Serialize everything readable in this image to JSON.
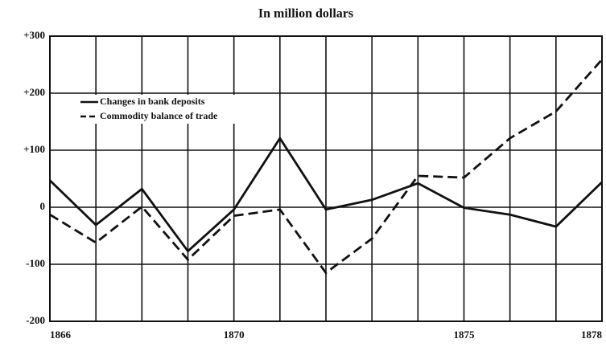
{
  "chart_data": {
    "type": "line",
    "title": "In million dollars",
    "x": [
      1866,
      1867,
      1868,
      1869,
      1870,
      1871,
      1872,
      1873,
      1874,
      1875,
      1876,
      1877,
      1878
    ],
    "xlim": [
      1866,
      1878
    ],
    "xticks": [
      1866,
      1870,
      1875,
      1878
    ],
    "ylim": [
      -200,
      300
    ],
    "yticks": [
      {
        "value": 300,
        "label": "+300"
      },
      {
        "value": 200,
        "label": "+200"
      },
      {
        "value": 100,
        "label": "+100"
      },
      0,
      -100,
      -200
    ],
    "grid": true,
    "legend": "upper left",
    "series": [
      {
        "name": "Changes in bank deposits",
        "color": "#111111",
        "dash": "solid",
        "values": [
          47,
          -31,
          32,
          -77,
          -4,
          121,
          -4,
          13,
          42,
          -1,
          -13,
          -34,
          44
        ]
      },
      {
        "name": "Commodity balance of trade",
        "color": "#111111",
        "dash": "dashed",
        "values": [
          -13,
          -62,
          1,
          -92,
          -15,
          -4,
          -115,
          -55,
          55,
          52,
          121,
          168,
          259
        ]
      }
    ]
  }
}
